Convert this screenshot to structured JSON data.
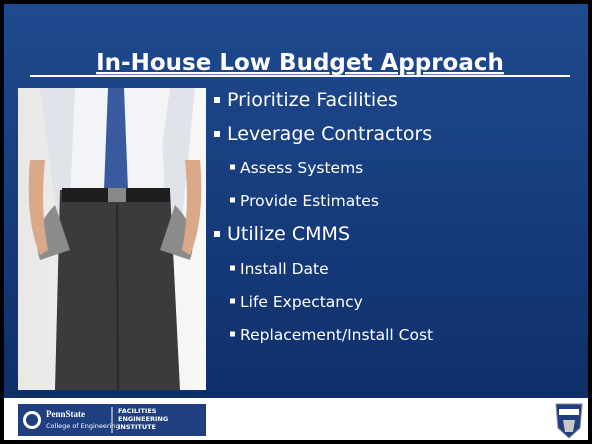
{
  "slide": {
    "title": "In-House Low Budget Approach",
    "bullets": [
      {
        "text": "Prioritize Facilities",
        "level": 1
      },
      {
        "text": "Leverage Contractors",
        "level": 1
      },
      {
        "text": "Assess Systems",
        "level": 2
      },
      {
        "text": "Provide Estimates",
        "level": 2
      },
      {
        "text": "Utilize CMMS",
        "level": 1
      },
      {
        "text": "Install Date",
        "level": 2
      },
      {
        "text": "Life Expectancy",
        "level": 2
      },
      {
        "text": "Replacement/Install Cost",
        "level": 2
      }
    ]
  },
  "footer": {
    "university": "PennState",
    "college": "College of Engineering",
    "institute": [
      "FACILITIES",
      "ENGINEERING",
      "INSTITUTE"
    ]
  }
}
